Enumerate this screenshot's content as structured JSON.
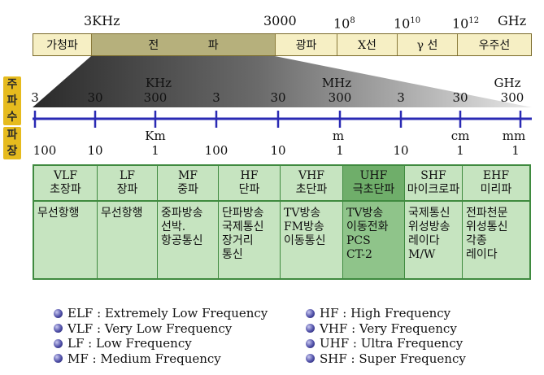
{
  "top_scale": [
    "3KHz",
    "3000",
    "10",
    "8",
    "10",
    "10",
    "10",
    "12",
    "GHz"
  ],
  "band_bar": [
    {
      "label": "가청파",
      "color": "#f6efc4"
    },
    {
      "label": "전  파",
      "color": "#b6b07c"
    },
    {
      "label": "광파",
      "color": "#f6efc4"
    },
    {
      "label": "X선",
      "color": "#f6efc4"
    },
    {
      "label": "γ 선",
      "color": "#f6efc4"
    },
    {
      "label": "우주선",
      "color": "#f6efc4"
    }
  ],
  "side_labels": {
    "frequency": [
      "주",
      "파",
      "수"
    ],
    "wavelength": [
      "파",
      "장"
    ]
  },
  "freq_units": [
    "KHz",
    "MHz",
    "GHz"
  ],
  "freq_ticks": [
    "3",
    "30",
    "300",
    "3",
    "30",
    "300",
    "3",
    "30",
    "300"
  ],
  "wave_units": [
    "Km",
    "m",
    "cm",
    "mm"
  ],
  "wave_ticks": [
    "100",
    "10",
    "1",
    "100",
    "10",
    "1",
    "10",
    "1",
    "1"
  ],
  "bands": [
    {
      "abbr": "VLF",
      "name": "초장파",
      "uses": [
        "무선항행"
      ]
    },
    {
      "abbr": "LF",
      "name": "장파",
      "uses": [
        "무선항행"
      ]
    },
    {
      "abbr": "MF",
      "name": "중파",
      "uses": [
        "중파방송",
        "선박.",
        "항공통신"
      ]
    },
    {
      "abbr": "HF",
      "name": "단파",
      "uses": [
        "단파방송",
        "국제통신",
        "장거리",
        "통신"
      ]
    },
    {
      "abbr": "VHF",
      "name": "초단파",
      "uses": [
        "TV방송",
        "FM방송",
        "이동통신"
      ]
    },
    {
      "abbr": "UHF",
      "name": "극초단파",
      "uses": [
        "TV방송",
        "이동전화",
        "PCS",
        "CT-2"
      ]
    },
    {
      "abbr": "SHF",
      "name": "마이크로파",
      "uses": [
        "국제통신",
        "위성방송",
        "레이다",
        "M/W"
      ]
    },
    {
      "abbr": "EHF",
      "name": "미리파",
      "uses": [
        "전파천문",
        "위성통신",
        "각종",
        "레이다"
      ]
    }
  ],
  "legend": {
    "left": [
      "ELF : Extremely Low Frequency",
      "VLF : Very Low Frequency",
      "LF : Low Frequency",
      "MF : Medium Frequency"
    ],
    "right": [
      "HF : High Frequency",
      "VHF : Very Frequency",
      "UHF : Ultra Frequency",
      "SHF : Super Frequency"
    ]
  },
  "colors": {
    "axis": "#2a2ab4",
    "table_bg": "#c6e4c0",
    "table_highlight": "#8fc48a",
    "side_label_bg": "#e6bb1e"
  }
}
